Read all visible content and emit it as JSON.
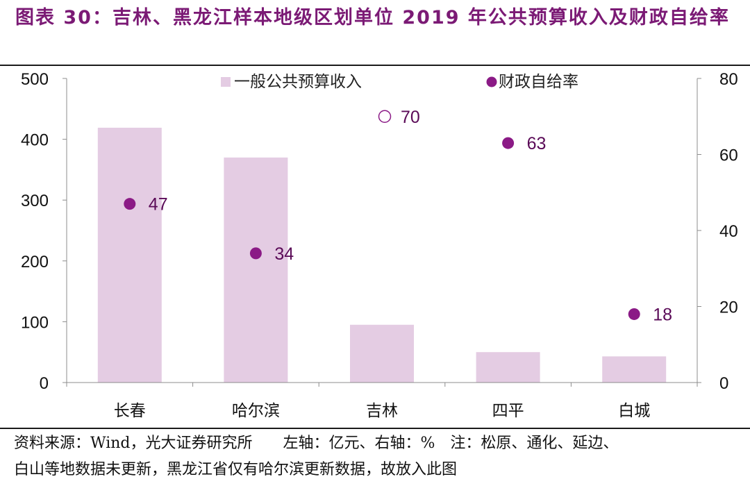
{
  "title": "图表 30：吉林、黑龙江样本地级区划单位 2019 年公共预算收入及财政自给率",
  "chart_data": {
    "type": "bar",
    "categories": [
      "长春",
      "哈尔滨",
      "吉林",
      "四平",
      "白城"
    ],
    "series": [
      {
        "name": "一般公共预算收入",
        "type": "bar",
        "axis": "left",
        "color": "#E4CCE3",
        "values": [
          419,
          370,
          95,
          50,
          43
        ]
      },
      {
        "name": "财政自给率",
        "type": "scatter",
        "axis": "right",
        "color": "#8B1A86",
        "values": [
          47,
          34,
          70,
          63,
          18
        ],
        "labels": [
          "47",
          "34",
          "70",
          "63",
          "18"
        ],
        "hollow": [
          false,
          false,
          true,
          false,
          false
        ]
      }
    ],
    "left_axis": {
      "ylim": [
        0,
        500
      ],
      "ticks": [
        "0",
        "100",
        "200",
        "300",
        "400",
        "500"
      ],
      "tick_values": [
        0,
        100,
        200,
        300,
        400,
        500
      ]
    },
    "right_axis": {
      "ylim": [
        0,
        80
      ],
      "ticks": [
        "0",
        "20",
        "40",
        "60",
        "80"
      ],
      "tick_values": [
        0,
        20,
        40,
        60,
        80
      ]
    },
    "legend": [
      "一般公共预算收入",
      "财政自给率"
    ],
    "legend_position": "top-center"
  },
  "footer": {
    "line1": "资料来源：Wind，光大证券研究所　　左轴：亿元、右轴：%　注：松原、通化、延边、",
    "line2": "白山等地数据未更新，黑龙江省仅有哈尔滨更新数据，故放入此图"
  }
}
